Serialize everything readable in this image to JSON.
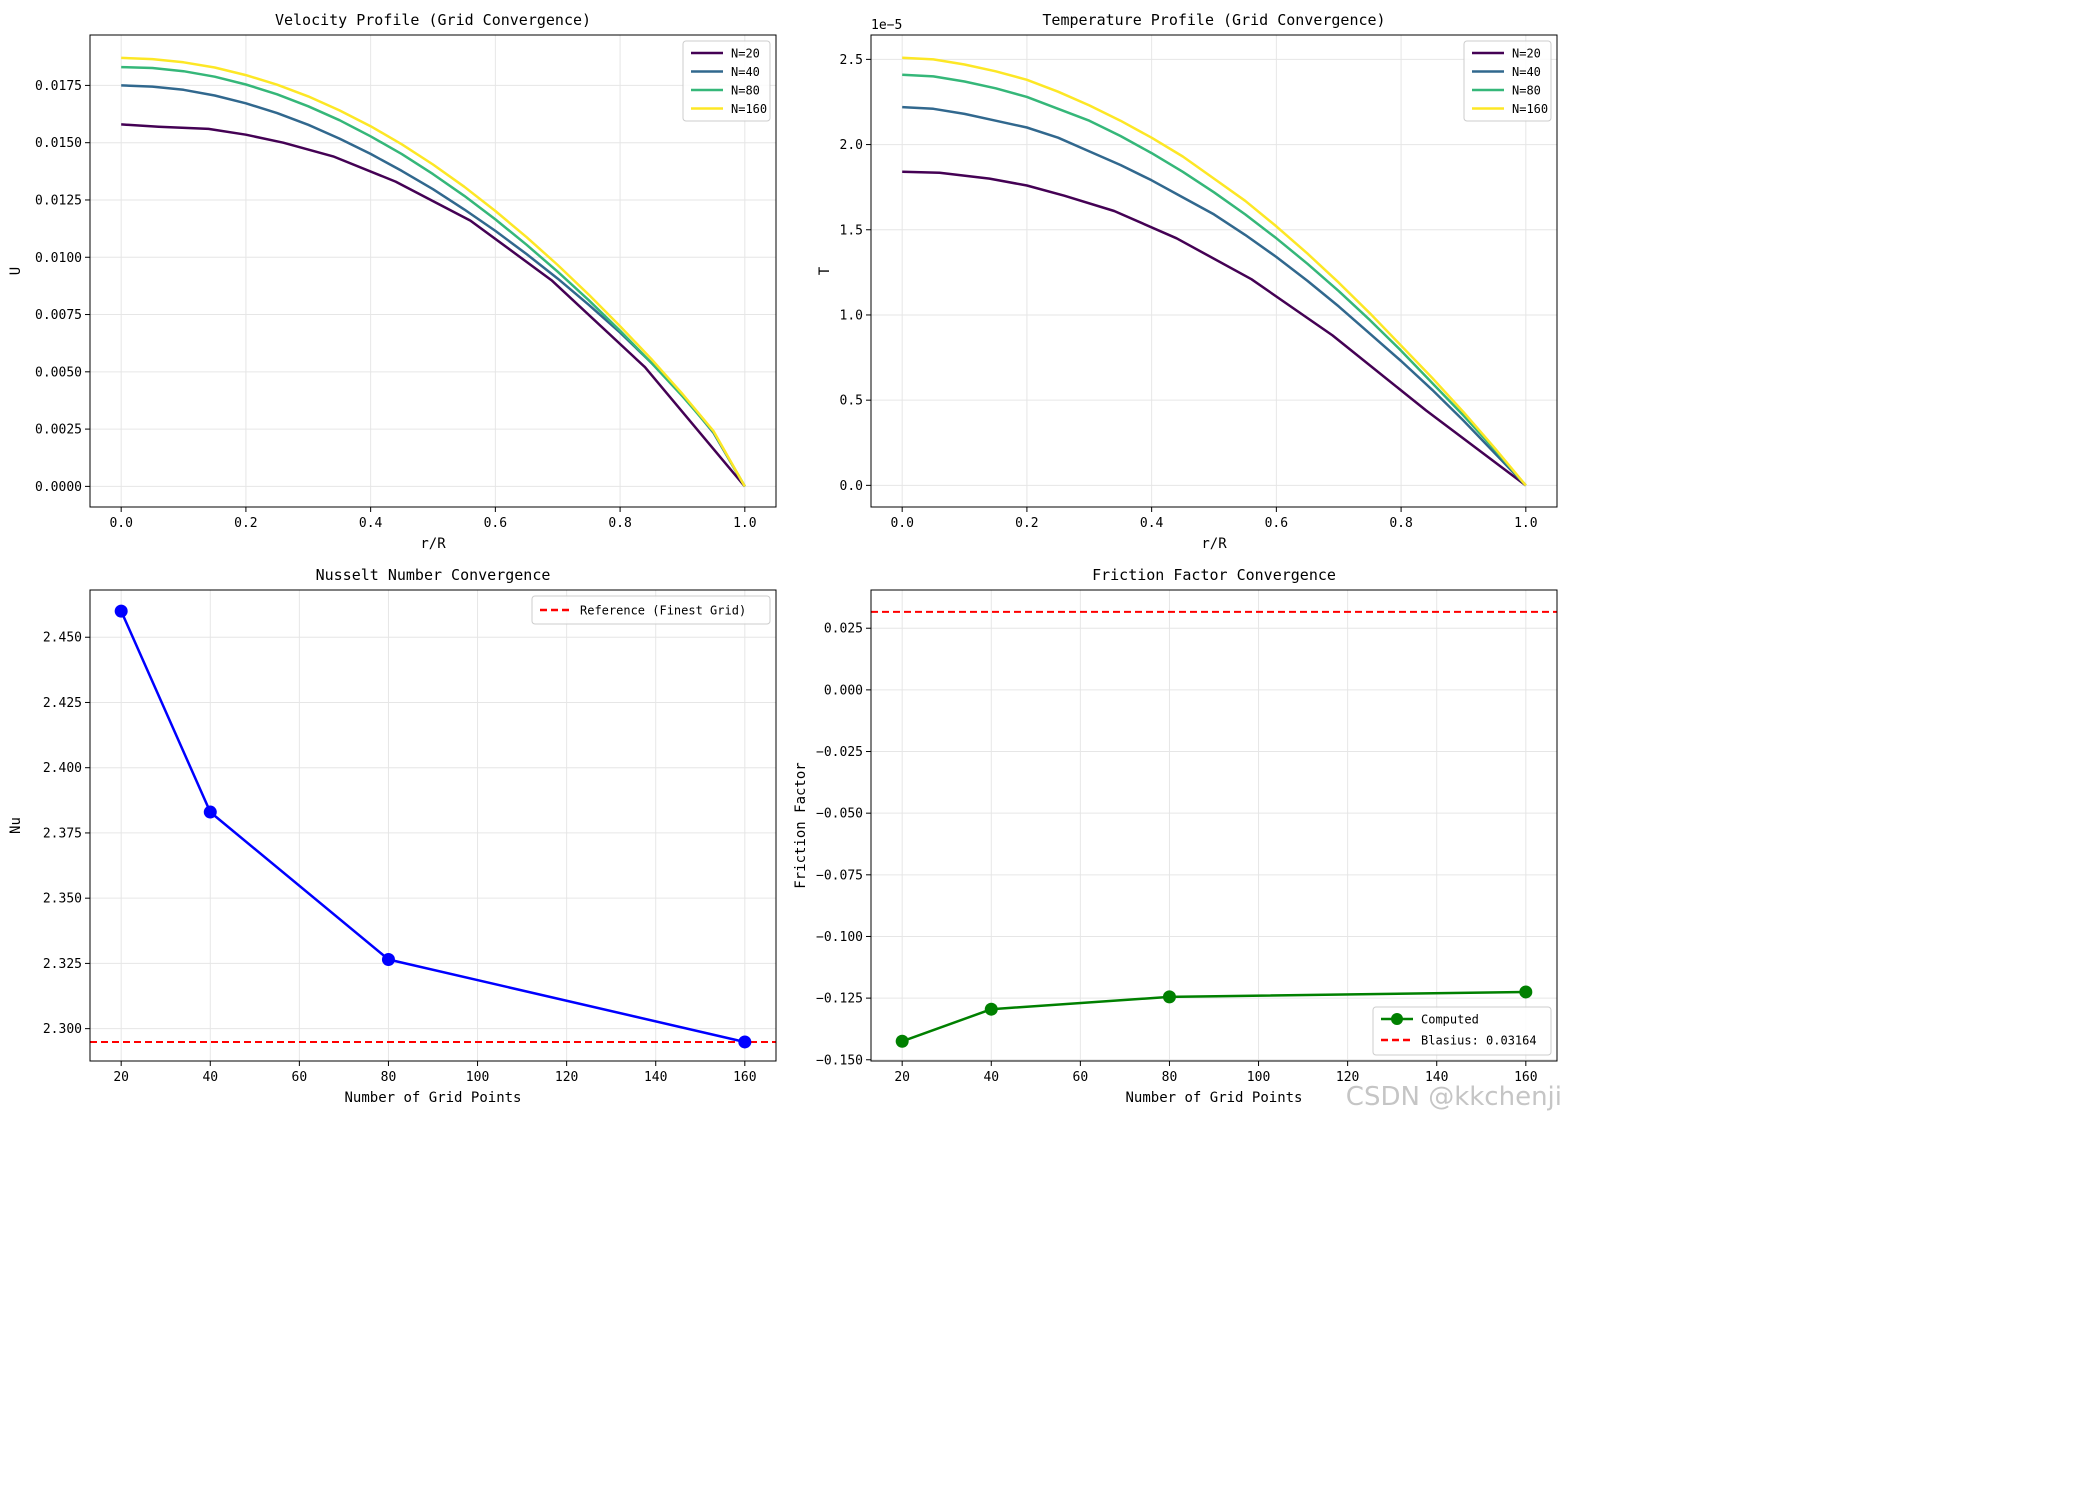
{
  "chart_data": [
    {
      "type": "line",
      "title": "Velocity Profile (Grid Convergence)",
      "xlabel": "r/R",
      "ylabel": "U",
      "xlim": [
        -0.05,
        1.05
      ],
      "ylim": [
        -0.0009,
        0.0197
      ],
      "xticks": [
        0.0,
        0.2,
        0.4,
        0.6,
        0.8,
        1.0
      ],
      "xtick_labels": [
        "0.0",
        "0.2",
        "0.4",
        "0.6",
        "0.8",
        "1.0"
      ],
      "yticks": [
        0.0,
        0.0025,
        0.005,
        0.0075,
        0.01,
        0.0125,
        0.015,
        0.0175
      ],
      "ytick_labels": [
        "0.0000",
        "0.0025",
        "0.0050",
        "0.0075",
        "0.0100",
        "0.0125",
        "0.0150",
        "0.0175"
      ],
      "grid": true,
      "legend": "top-right",
      "series": [
        {
          "name": "N=20",
          "color": "#440154",
          "x": [
            0,
            0.06,
            0.14,
            0.2,
            0.26,
            0.34,
            0.44,
            0.56,
            0.69,
            0.84,
            1.0
          ],
          "y": [
            0.0158,
            0.0157,
            0.0156,
            0.01535,
            0.015,
            0.0144,
            0.0133,
            0.0116,
            0.009,
            0.0052,
            0.0
          ]
        },
        {
          "name": "N=40",
          "color": "#31688e",
          "x": [
            0,
            0.05,
            0.1,
            0.15,
            0.2,
            0.25,
            0.3,
            0.35,
            0.4,
            0.45,
            0.5,
            0.55,
            0.6,
            0.65,
            0.7,
            0.75,
            0.8,
            0.85,
            0.9,
            0.95,
            1.0
          ],
          "y": [
            0.0175,
            0.01745,
            0.01731,
            0.01706,
            0.01672,
            0.01629,
            0.01578,
            0.01518,
            0.01451,
            0.01377,
            0.01297,
            0.01209,
            0.01115,
            0.01014,
            0.00907,
            0.00792,
            0.00671,
            0.0054,
            0.00398,
            0.00233,
            0.0
          ]
        },
        {
          "name": "N=80",
          "color": "#35b779",
          "x": [
            0,
            0.05,
            0.1,
            0.15,
            0.2,
            0.25,
            0.3,
            0.35,
            0.4,
            0.45,
            0.5,
            0.55,
            0.6,
            0.65,
            0.7,
            0.75,
            0.8,
            0.85,
            0.9,
            0.95,
            1.0
          ],
          "y": [
            0.0183,
            0.01826,
            0.01812,
            0.01788,
            0.01754,
            0.01711,
            0.01659,
            0.01598,
            0.01528,
            0.0145,
            0.01363,
            0.01268,
            0.01165,
            0.01055,
            0.00937,
            0.00812,
            0.00679,
            0.0054,
            0.00393,
            0.00237,
            0.0
          ]
        },
        {
          "name": "N=160",
          "color": "#fde725",
          "x": [
            0,
            0.05,
            0.1,
            0.15,
            0.2,
            0.25,
            0.3,
            0.35,
            0.4,
            0.45,
            0.5,
            0.55,
            0.6,
            0.65,
            0.7,
            0.75,
            0.8,
            0.85,
            0.9,
            0.95,
            1.0
          ],
          "y": [
            0.0187,
            0.01865,
            0.01851,
            0.01828,
            0.01795,
            0.01753,
            0.01702,
            0.01641,
            0.01572,
            0.01493,
            0.01405,
            0.01308,
            0.01202,
            0.01088,
            0.00966,
            0.00836,
            0.00699,
            0.00556,
            0.00403,
            0.00241,
            0.0
          ]
        }
      ]
    },
    {
      "type": "line",
      "title": "Temperature Profile (Grid Convergence)",
      "xlabel": "r/R",
      "ylabel": "T",
      "offset_text": "1e−5",
      "xlim": [
        -0.05,
        1.05
      ],
      "ylim": [
        -0.127,
        2.643
      ],
      "xticks": [
        0.0,
        0.2,
        0.4,
        0.6,
        0.8,
        1.0
      ],
      "xtick_labels": [
        "0.0",
        "0.2",
        "0.4",
        "0.6",
        "0.8",
        "1.0"
      ],
      "yticks": [
        0.0,
        0.5,
        1.0,
        1.5,
        2.0,
        2.5
      ],
      "ytick_labels": [
        "0.0",
        "0.5",
        "1.0",
        "1.5",
        "2.0",
        "2.5"
      ],
      "grid": true,
      "legend": "top-right",
      "series": [
        {
          "name": "N=20",
          "color": "#440154",
          "x": [
            0,
            0.06,
            0.14,
            0.2,
            0.26,
            0.34,
            0.44,
            0.56,
            0.69,
            0.84,
            1.0
          ],
          "y": [
            1.84,
            1.835,
            1.8,
            1.76,
            1.7,
            1.61,
            1.45,
            1.21,
            0.88,
            0.44,
            0.0
          ]
        },
        {
          "name": "N=40",
          "color": "#31688e",
          "x": [
            0,
            0.05,
            0.1,
            0.15,
            0.2,
            0.25,
            0.3,
            0.35,
            0.4,
            0.45,
            0.5,
            0.55,
            0.6,
            0.65,
            0.7,
            0.75,
            0.8,
            0.85,
            0.9,
            0.95,
            1.0
          ],
          "y": [
            2.22,
            2.21,
            2.18,
            2.14,
            2.1,
            2.04,
            1.96,
            1.88,
            1.79,
            1.69,
            1.59,
            1.47,
            1.34,
            1.2,
            1.05,
            0.89,
            0.73,
            0.56,
            0.38,
            0.19,
            0.0
          ]
        },
        {
          "name": "N=80",
          "color": "#35b779",
          "x": [
            0,
            0.05,
            0.1,
            0.15,
            0.2,
            0.25,
            0.3,
            0.35,
            0.4,
            0.45,
            0.5,
            0.55,
            0.6,
            0.65,
            0.7,
            0.75,
            0.8,
            0.85,
            0.9,
            0.95,
            1.0
          ],
          "y": [
            2.41,
            2.4,
            2.37,
            2.33,
            2.28,
            2.21,
            2.14,
            2.05,
            1.95,
            1.84,
            1.72,
            1.59,
            1.45,
            1.3,
            1.14,
            0.97,
            0.79,
            0.6,
            0.41,
            0.21,
            0.0
          ]
        },
        {
          "name": "N=160",
          "color": "#fde725",
          "x": [
            0,
            0.05,
            0.1,
            0.15,
            0.2,
            0.25,
            0.3,
            0.35,
            0.4,
            0.45,
            0.5,
            0.55,
            0.6,
            0.65,
            0.7,
            0.75,
            0.8,
            0.85,
            0.9,
            0.95,
            1.0
          ],
          "y": [
            2.51,
            2.5,
            2.47,
            2.43,
            2.38,
            2.31,
            2.23,
            2.14,
            2.04,
            1.93,
            1.8,
            1.67,
            1.52,
            1.36,
            1.19,
            1.01,
            0.82,
            0.63,
            0.43,
            0.22,
            0.0
          ]
        }
      ]
    },
    {
      "type": "line",
      "title": "Nusselt Number Convergence",
      "xlabel": "Number of Grid Points",
      "ylabel": "Nu",
      "xlim": [
        13,
        167
      ],
      "ylim": [
        2.2876,
        2.4681
      ],
      "xticks": [
        20,
        40,
        60,
        80,
        100,
        120,
        140,
        160
      ],
      "xtick_labels": [
        "20",
        "40",
        "60",
        "80",
        "100",
        "120",
        "140",
        "160"
      ],
      "yticks": [
        2.3,
        2.325,
        2.35,
        2.375,
        2.4,
        2.425,
        2.45
      ],
      "ytick_labels": [
        "2.300",
        "2.325",
        "2.350",
        "2.375",
        "2.400",
        "2.425",
        "2.450"
      ],
      "grid": true,
      "legend": "top-right",
      "series": [
        {
          "name": "",
          "color": "#0000ff",
          "marker": "circle",
          "x": [
            20,
            40,
            80,
            160
          ],
          "y": [
            2.46,
            2.383,
            2.3265,
            2.2949
          ]
        }
      ],
      "reference_lines": [
        {
          "name": "Reference (Finest Grid)",
          "color": "#ff0000",
          "y": 2.2949
        }
      ]
    },
    {
      "type": "line",
      "title": "Friction Factor Convergence",
      "xlabel": "Number of Grid Points",
      "ylabel": "Friction Factor",
      "xlim": [
        13,
        167
      ],
      "ylim": [
        -0.1505,
        0.0405
      ],
      "xticks": [
        20,
        40,
        60,
        80,
        100,
        120,
        140,
        160
      ],
      "xtick_labels": [
        "20",
        "40",
        "60",
        "80",
        "100",
        "120",
        "140",
        "160"
      ],
      "yticks": [
        -0.15,
        -0.125,
        -0.1,
        -0.075,
        -0.05,
        -0.025,
        0.0,
        0.025
      ],
      "ytick_labels": [
        "−0.150",
        "−0.125",
        "−0.100",
        "−0.075",
        "−0.050",
        "−0.025",
        "0.000",
        "0.025"
      ],
      "grid": true,
      "legend": "bottom-right",
      "series": [
        {
          "name": "Computed",
          "color": "#008000",
          "marker": "circle",
          "x": [
            20,
            40,
            80,
            160
          ],
          "y": [
            -0.1425,
            -0.1295,
            -0.1245,
            -0.1225
          ]
        }
      ],
      "reference_lines": [
        {
          "name": "Blasius: 0.03164",
          "color": "#ff0000",
          "y": 0.03164
        }
      ]
    }
  ],
  "watermark": "CSDN @kkchenji"
}
